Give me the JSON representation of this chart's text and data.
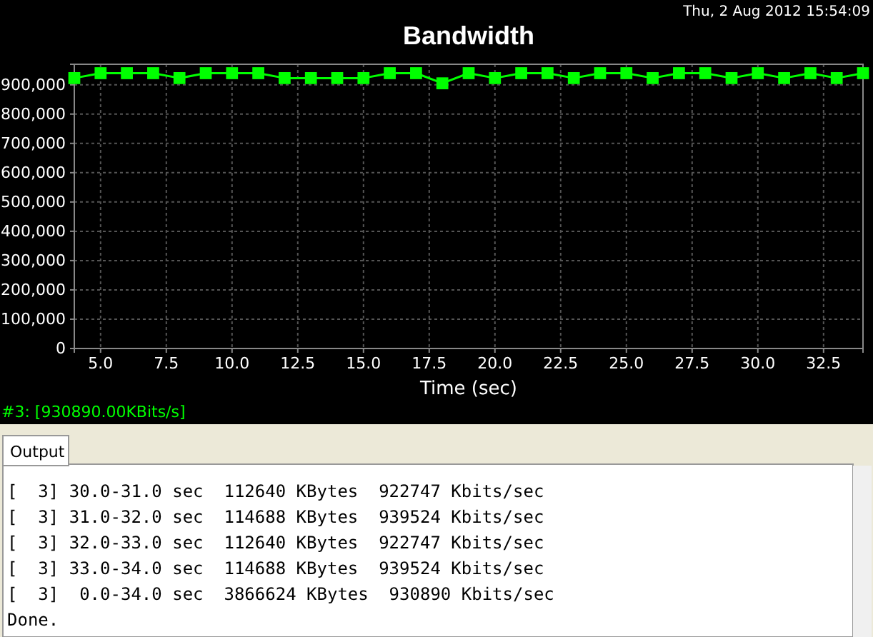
{
  "chart_data": {
    "type": "line",
    "title": "Bandwidth",
    "xlabel": "Time (sec)",
    "x": [
      4,
      5,
      6,
      7,
      8,
      9,
      10,
      11,
      12,
      13,
      14,
      15,
      16,
      17,
      18,
      19,
      20,
      21,
      22,
      23,
      24,
      25,
      26,
      27,
      28,
      29,
      30,
      31,
      32,
      33,
      34
    ],
    "series": [
      {
        "color": "#00ff00",
        "values": [
          922747,
          939524,
          939524,
          939524,
          922747,
          939524,
          939524,
          939524,
          922747,
          922747,
          922747,
          922747,
          939524,
          939524,
          905000,
          939524,
          922747,
          939524,
          939524,
          922747,
          939524,
          939524,
          922747,
          939524,
          939524,
          922747,
          939524,
          922747,
          939524,
          922747,
          939524
        ]
      }
    ],
    "xlim": [
      4,
      34
    ],
    "xticks": [
      {
        "value": 5,
        "label": "5.0"
      },
      {
        "value": 7.5,
        "label": "7.5"
      },
      {
        "value": 10,
        "label": "10.0"
      },
      {
        "value": 12.5,
        "label": "12.5"
      },
      {
        "value": 15,
        "label": "15.0"
      },
      {
        "value": 17.5,
        "label": "17.5"
      },
      {
        "value": 20,
        "label": "20.0"
      },
      {
        "value": 22.5,
        "label": "22.5"
      },
      {
        "value": 25,
        "label": "25.0"
      },
      {
        "value": 27.5,
        "label": "27.5"
      },
      {
        "value": 30,
        "label": "30.0"
      },
      {
        "value": 32.5,
        "label": "32.5"
      }
    ],
    "ylim": [
      0,
      970000
    ],
    "yticks": [
      {
        "value": 0,
        "label": "0"
      },
      {
        "value": 100000,
        "label": "100,000"
      },
      {
        "value": 200000,
        "label": "200,000"
      },
      {
        "value": 300000,
        "label": "300,000"
      },
      {
        "value": 400000,
        "label": "400,000"
      },
      {
        "value": 500000,
        "label": "500,000"
      },
      {
        "value": 600000,
        "label": "600,000"
      },
      {
        "value": 700000,
        "label": "700,000"
      },
      {
        "value": 800000,
        "label": "800,000"
      },
      {
        "value": 900000,
        "label": "900,000"
      }
    ],
    "grid": true,
    "marker": "square",
    "line_style": "solid",
    "annotations": [
      "Thu, 2 Aug 2012 15:54:09",
      "#3: [930890.00KBits/s]",
      "Output",
      "[  3] 30.0-31.0 sec  112640 KBytes  922747 Kbits/sec",
      "[  3] 31.0-32.0 sec  114688 KBytes  939524 Kbits/sec",
      "[  3] 32.0-33.0 sec  112640 KBytes  922747 Kbits/sec",
      "[  3] 33.0-34.0 sec  114688 KBytes  939524 Kbits/sec",
      "[  3]  0.0-34.0 sec  3866624 KBytes  930890 Kbits/sec",
      "Done."
    ]
  }
}
